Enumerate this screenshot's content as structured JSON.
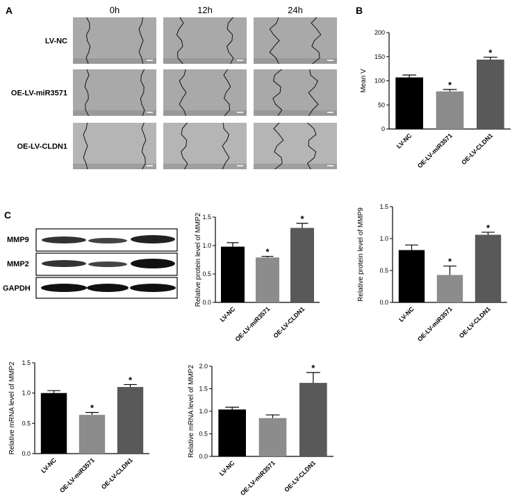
{
  "panel_a": {
    "label": "A",
    "columns": [
      "0h",
      "12h",
      "24h"
    ],
    "rows": [
      "LV-NC",
      "OE-LV-miR3571",
      "OE-LV-CLDN1"
    ]
  },
  "panel_b": {
    "label": "B"
  },
  "panel_c": {
    "label": "C",
    "blot_labels": [
      "MMP9",
      "MMP2",
      "GAPDH"
    ]
  },
  "chart_data": [
    {
      "type": "bar",
      "ylabel": "Mean V",
      "categories": [
        "LV-NC",
        "OE-LV-miR3571",
        "OE-LV-CLDN1"
      ],
      "values": [
        107,
        78,
        144
      ],
      "errors": [
        5,
        4,
        5
      ],
      "annotations": [
        null,
        "*",
        "*"
      ],
      "colors": [
        "#000000",
        "#8c8c8c",
        "#595959"
      ],
      "ylim": [
        0,
        200
      ],
      "yticks": [
        0,
        50,
        100,
        150,
        200
      ]
    },
    {
      "type": "bar",
      "ylabel": "Relative protein level of MMP2",
      "categories": [
        "LV-NC",
        "OE-LV-miR3571",
        "OE-LV-CLDN1"
      ],
      "values": [
        0.98,
        0.79,
        1.31
      ],
      "errors": [
        0.07,
        0.02,
        0.08
      ],
      "annotations": [
        null,
        "*",
        "*"
      ],
      "colors": [
        "#000000",
        "#8c8c8c",
        "#595959"
      ],
      "ylim": [
        0,
        1.5
      ],
      "yticks": [
        {
          "value": 0,
          "label": "0.0"
        },
        0.5,
        {
          "value": 1,
          "label": "1.0"
        },
        1.5
      ]
    },
    {
      "type": "bar",
      "ylabel": "Relative protein level of MMP9",
      "categories": [
        "LV-NC",
        "OE-LV-miR3571",
        "OE-LV-CLDN1"
      ],
      "values": [
        0.82,
        0.43,
        1.06
      ],
      "errors": [
        0.08,
        0.14,
        0.04
      ],
      "annotations": [
        null,
        "*",
        "*"
      ],
      "colors": [
        "#000000",
        "#8c8c8c",
        "#595959"
      ],
      "ylim": [
        0,
        1.5
      ],
      "yticks": [
        {
          "value": 0,
          "label": "0.0"
        },
        0.5,
        {
          "value": 1,
          "label": "1.0"
        },
        1.5
      ]
    },
    {
      "type": "bar",
      "ylabel": "Relative mRNA level of MMP2",
      "categories": [
        "LV-NC",
        "OE-LV-miR3571",
        "OE-LV-CLDN1"
      ],
      "values": [
        1.0,
        0.64,
        1.1
      ],
      "errors": [
        0.04,
        0.04,
        0.04
      ],
      "annotations": [
        null,
        "*",
        "*"
      ],
      "colors": [
        "#000000",
        "#8c8c8c",
        "#595959"
      ],
      "ylim": [
        0,
        1.5
      ],
      "yticks": [
        {
          "value": 0,
          "label": "0.0"
        },
        0.5,
        {
          "value": 1,
          "label": "1.0"
        },
        1.5
      ]
    },
    {
      "type": "bar",
      "ylabel": "Relative mRNA level of MMP2",
      "categories": [
        "LV-NC",
        "OE-LV-miR3571",
        "OE-LV-CLDN1"
      ],
      "values": [
        1.04,
        0.85,
        1.63
      ],
      "errors": [
        0.05,
        0.07,
        0.23
      ],
      "annotations": [
        null,
        null,
        "*"
      ],
      "colors": [
        "#000000",
        "#8c8c8c",
        "#595959"
      ],
      "ylim": [
        0,
        2
      ],
      "yticks": [
        {
          "value": 0,
          "label": "0.0"
        },
        0.5,
        {
          "value": 1,
          "label": "1.0"
        },
        1.5,
        {
          "value": 2,
          "label": "2.0"
        }
      ]
    }
  ]
}
